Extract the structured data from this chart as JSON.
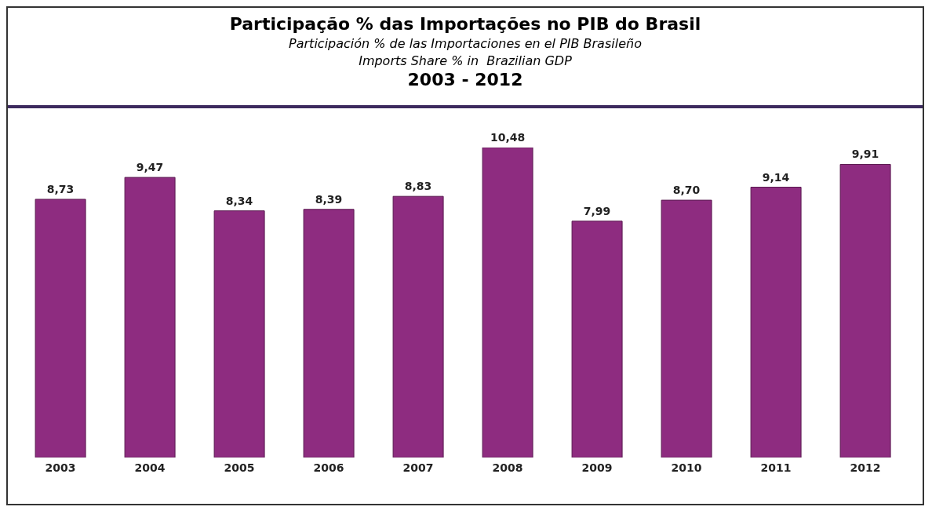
{
  "chart_data": {
    "type": "bar",
    "title": "Participação % das Importações no PIB do Brasil",
    "subtitle": "Participación % de las Importaciones en el PIB Brasileño\nImports Share % in  Brazilian GDP\n2003 - 2012",
    "categories": [
      "2003",
      "2004",
      "2005",
      "2006",
      "2007",
      "2008",
      "2009",
      "2010",
      "2011",
      "2012"
    ],
    "values": [
      8.73,
      9.47,
      8.34,
      8.39,
      8.83,
      10.48,
      7.99,
      8.7,
      9.14,
      9.91
    ],
    "value_labels": [
      "8,73",
      "9,47",
      "8,34",
      "8,39",
      "8,83",
      "10,48",
      "7,99",
      "8,70",
      "9,14",
      "9,91"
    ],
    "color": "#8e2c80",
    "grid": false,
    "legend": false
  }
}
